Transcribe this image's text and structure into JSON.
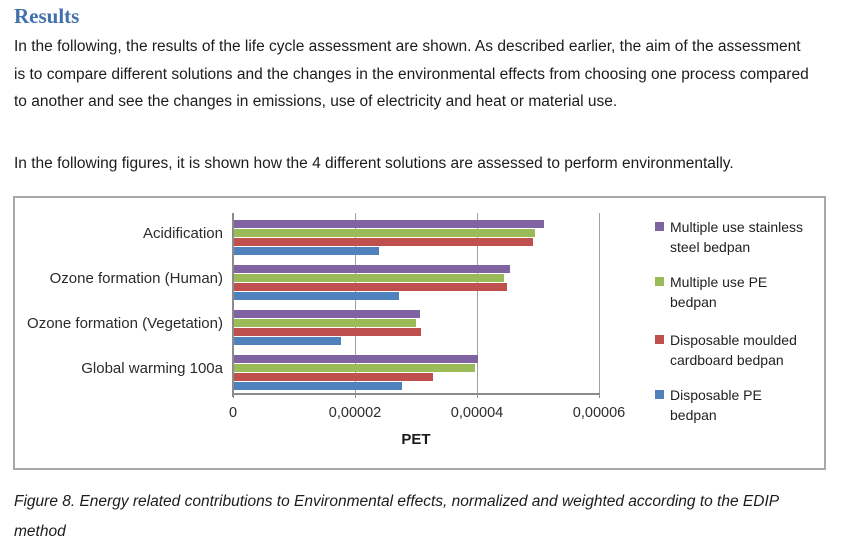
{
  "document": {
    "heading": "Results",
    "paragraph_1": "In the following, the results of the life cycle assessment are shown. As described earlier, the aim of the assessment is to compare different solutions and the changes in the environmental effects from choosing one process compared to another and see the changes in emissions, use of electricity and heat or material use.",
    "paragraph_2": "In the following figures, it is shown how the 4 different solutions are assessed to perform environmentally.",
    "caption": "Figure 8.  Energy related contributions to Environmental effects, normalized and weighted according to the EDIP method"
  },
  "chart_data": {
    "type": "bar",
    "orientation": "horizontal",
    "title": "",
    "xlabel": "PET",
    "ylabel": "",
    "xlim": [
      0,
      6e-05
    ],
    "xticks": [
      0,
      2e-05,
      4e-05,
      6e-05
    ],
    "xtick_labels": [
      "0",
      "0,00002",
      "0,00004",
      "0,00006"
    ],
    "grid": true,
    "legend_position": "right",
    "categories": [
      "Acidification",
      "Ozone formation (Human)",
      "Ozone formation (Vegetation)",
      "Global warming 100a"
    ],
    "series": [
      {
        "name": "Multiple use stainless steel bedpan",
        "color": "#8064A2",
        "values": [
          5.08e-05,
          4.52e-05,
          3.05e-05,
          4e-05
        ]
      },
      {
        "name": "Multiple use PE bedpan",
        "color": "#9BBB59",
        "values": [
          4.93e-05,
          4.42e-05,
          2.99e-05,
          3.95e-05
        ]
      },
      {
        "name": "Disposable moulded cardboard bedpan",
        "color": "#C0504D",
        "values": [
          4.9e-05,
          4.47e-05,
          3.06e-05,
          3.26e-05
        ]
      },
      {
        "name": "Disposable PE bedpan",
        "color": "#4F81BD",
        "values": [
          2.38e-05,
          2.7e-05,
          1.75e-05,
          2.75e-05
        ]
      }
    ]
  }
}
